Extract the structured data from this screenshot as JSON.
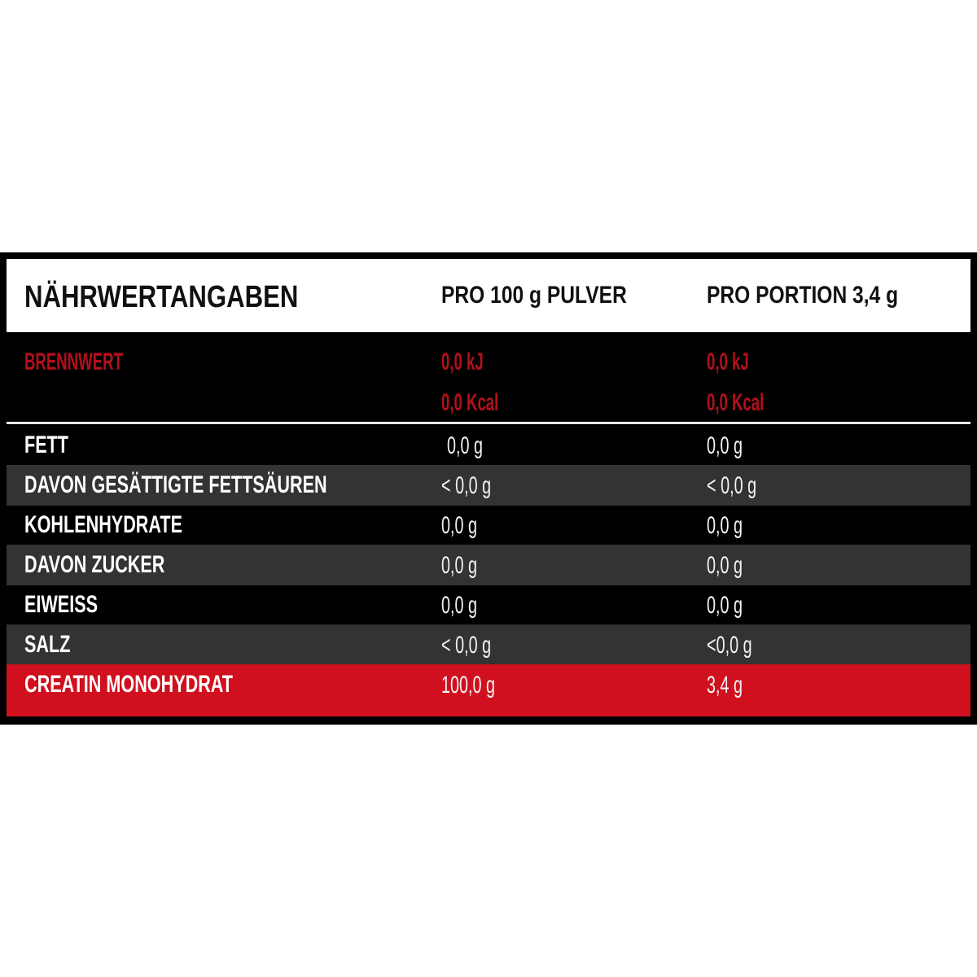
{
  "table": {
    "header": {
      "title": "NÄHRWERTANGABEN",
      "col_per100": "PRO 100 g PULVER",
      "col_portion": "PRO PORTION 3,4 g"
    },
    "energy": {
      "label": "BRENNWERT",
      "per100_kj": "0,0 kJ",
      "per100_kcal": "0,0 Kcal",
      "portion_kj": "0,0 kJ",
      "portion_kcal": "0,0 Kcal"
    },
    "rows": [
      {
        "label": "FETT",
        "per100": "0,0 g",
        "portion": "0,0 g"
      },
      {
        "label": "DAVON GESÄTTIGTE FETTSÄUREN",
        "per100": "< 0,0 g",
        "portion": "< 0,0 g"
      },
      {
        "label": "KOHLENHYDRATE",
        "per100": "0,0 g",
        "portion": "0,0 g"
      },
      {
        "label": "DAVON ZUCKER",
        "per100": "0,0 g",
        "portion": "0,0 g"
      },
      {
        "label": "EIWEISS",
        "per100": "0,0 g",
        "portion": "0,0 g"
      },
      {
        "label": "SALZ",
        "per100": "< 0,0 g",
        "portion": "<0,0 g"
      },
      {
        "label": "CREATIN MONOHYDRAT",
        "per100": "100,0 g",
        "portion": "3,4 g"
      }
    ],
    "colors": {
      "highlight": "#d0101e",
      "energy_text": "#b3101c",
      "stripe": "#333333",
      "background": "#000000"
    }
  }
}
